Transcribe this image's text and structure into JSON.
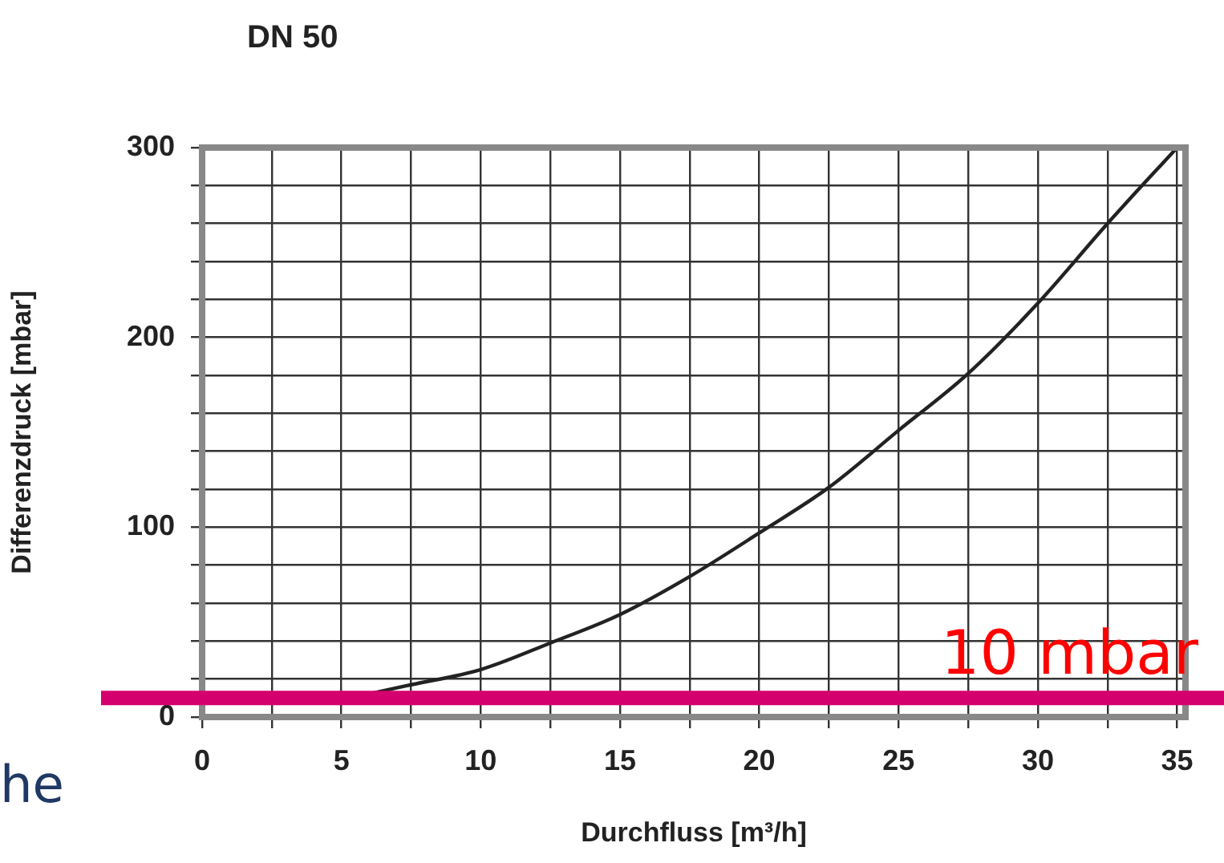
{
  "chart_data": {
    "type": "line",
    "title": "DN 50",
    "xlabel": "Durchfluss [m³/h]",
    "ylabel": "Differenzdruck [mbar]",
    "x": [
      5,
      7.5,
      10,
      12.5,
      15,
      17.5,
      20,
      22.5,
      25,
      27.5,
      30,
      32.5,
      35
    ],
    "series": [
      {
        "color": "#222222",
        "values": [
          9,
          17,
          25,
          39,
          54,
          74,
          97,
          121,
          151,
          181,
          218,
          260,
          300
        ]
      }
    ],
    "xlim": [
      0,
      35.3
    ],
    "ylim": [
      0,
      300
    ],
    "xticks": [
      0,
      {
        "value": 2.5,
        "label": null
      },
      5,
      {
        "value": 7.5,
        "label": null
      },
      10,
      {
        "value": 12.5,
        "label": null
      },
      15,
      {
        "value": 17.5,
        "label": null
      },
      20,
      {
        "value": 22.5,
        "label": null
      },
      25,
      {
        "value": 27.5,
        "label": null
      },
      30,
      {
        "value": 32.5,
        "label": null
      },
      35
    ],
    "yticks": [
      0,
      {
        "value": 20,
        "label": null
      },
      {
        "value": 40,
        "label": null
      },
      {
        "value": 60,
        "label": null
      },
      {
        "value": 80,
        "label": null
      },
      100,
      {
        "value": 120,
        "label": null
      },
      {
        "value": 140,
        "label": null
      },
      {
        "value": 160,
        "label": null
      },
      {
        "value": 180,
        "label": null
      },
      200,
      {
        "value": 220,
        "label": null
      },
      {
        "value": 240,
        "label": null
      },
      {
        "value": 260,
        "label": null
      },
      {
        "value": 280,
        "label": null
      },
      300
    ],
    "ref_lines": [
      {
        "axis": "y",
        "value": 10,
        "label": "10 mbar",
        "color": "#d4006e"
      }
    ],
    "annotations": [
      "he"
    ],
    "grid": true,
    "legend": false,
    "marker": "none",
    "line_style": "solid"
  }
}
